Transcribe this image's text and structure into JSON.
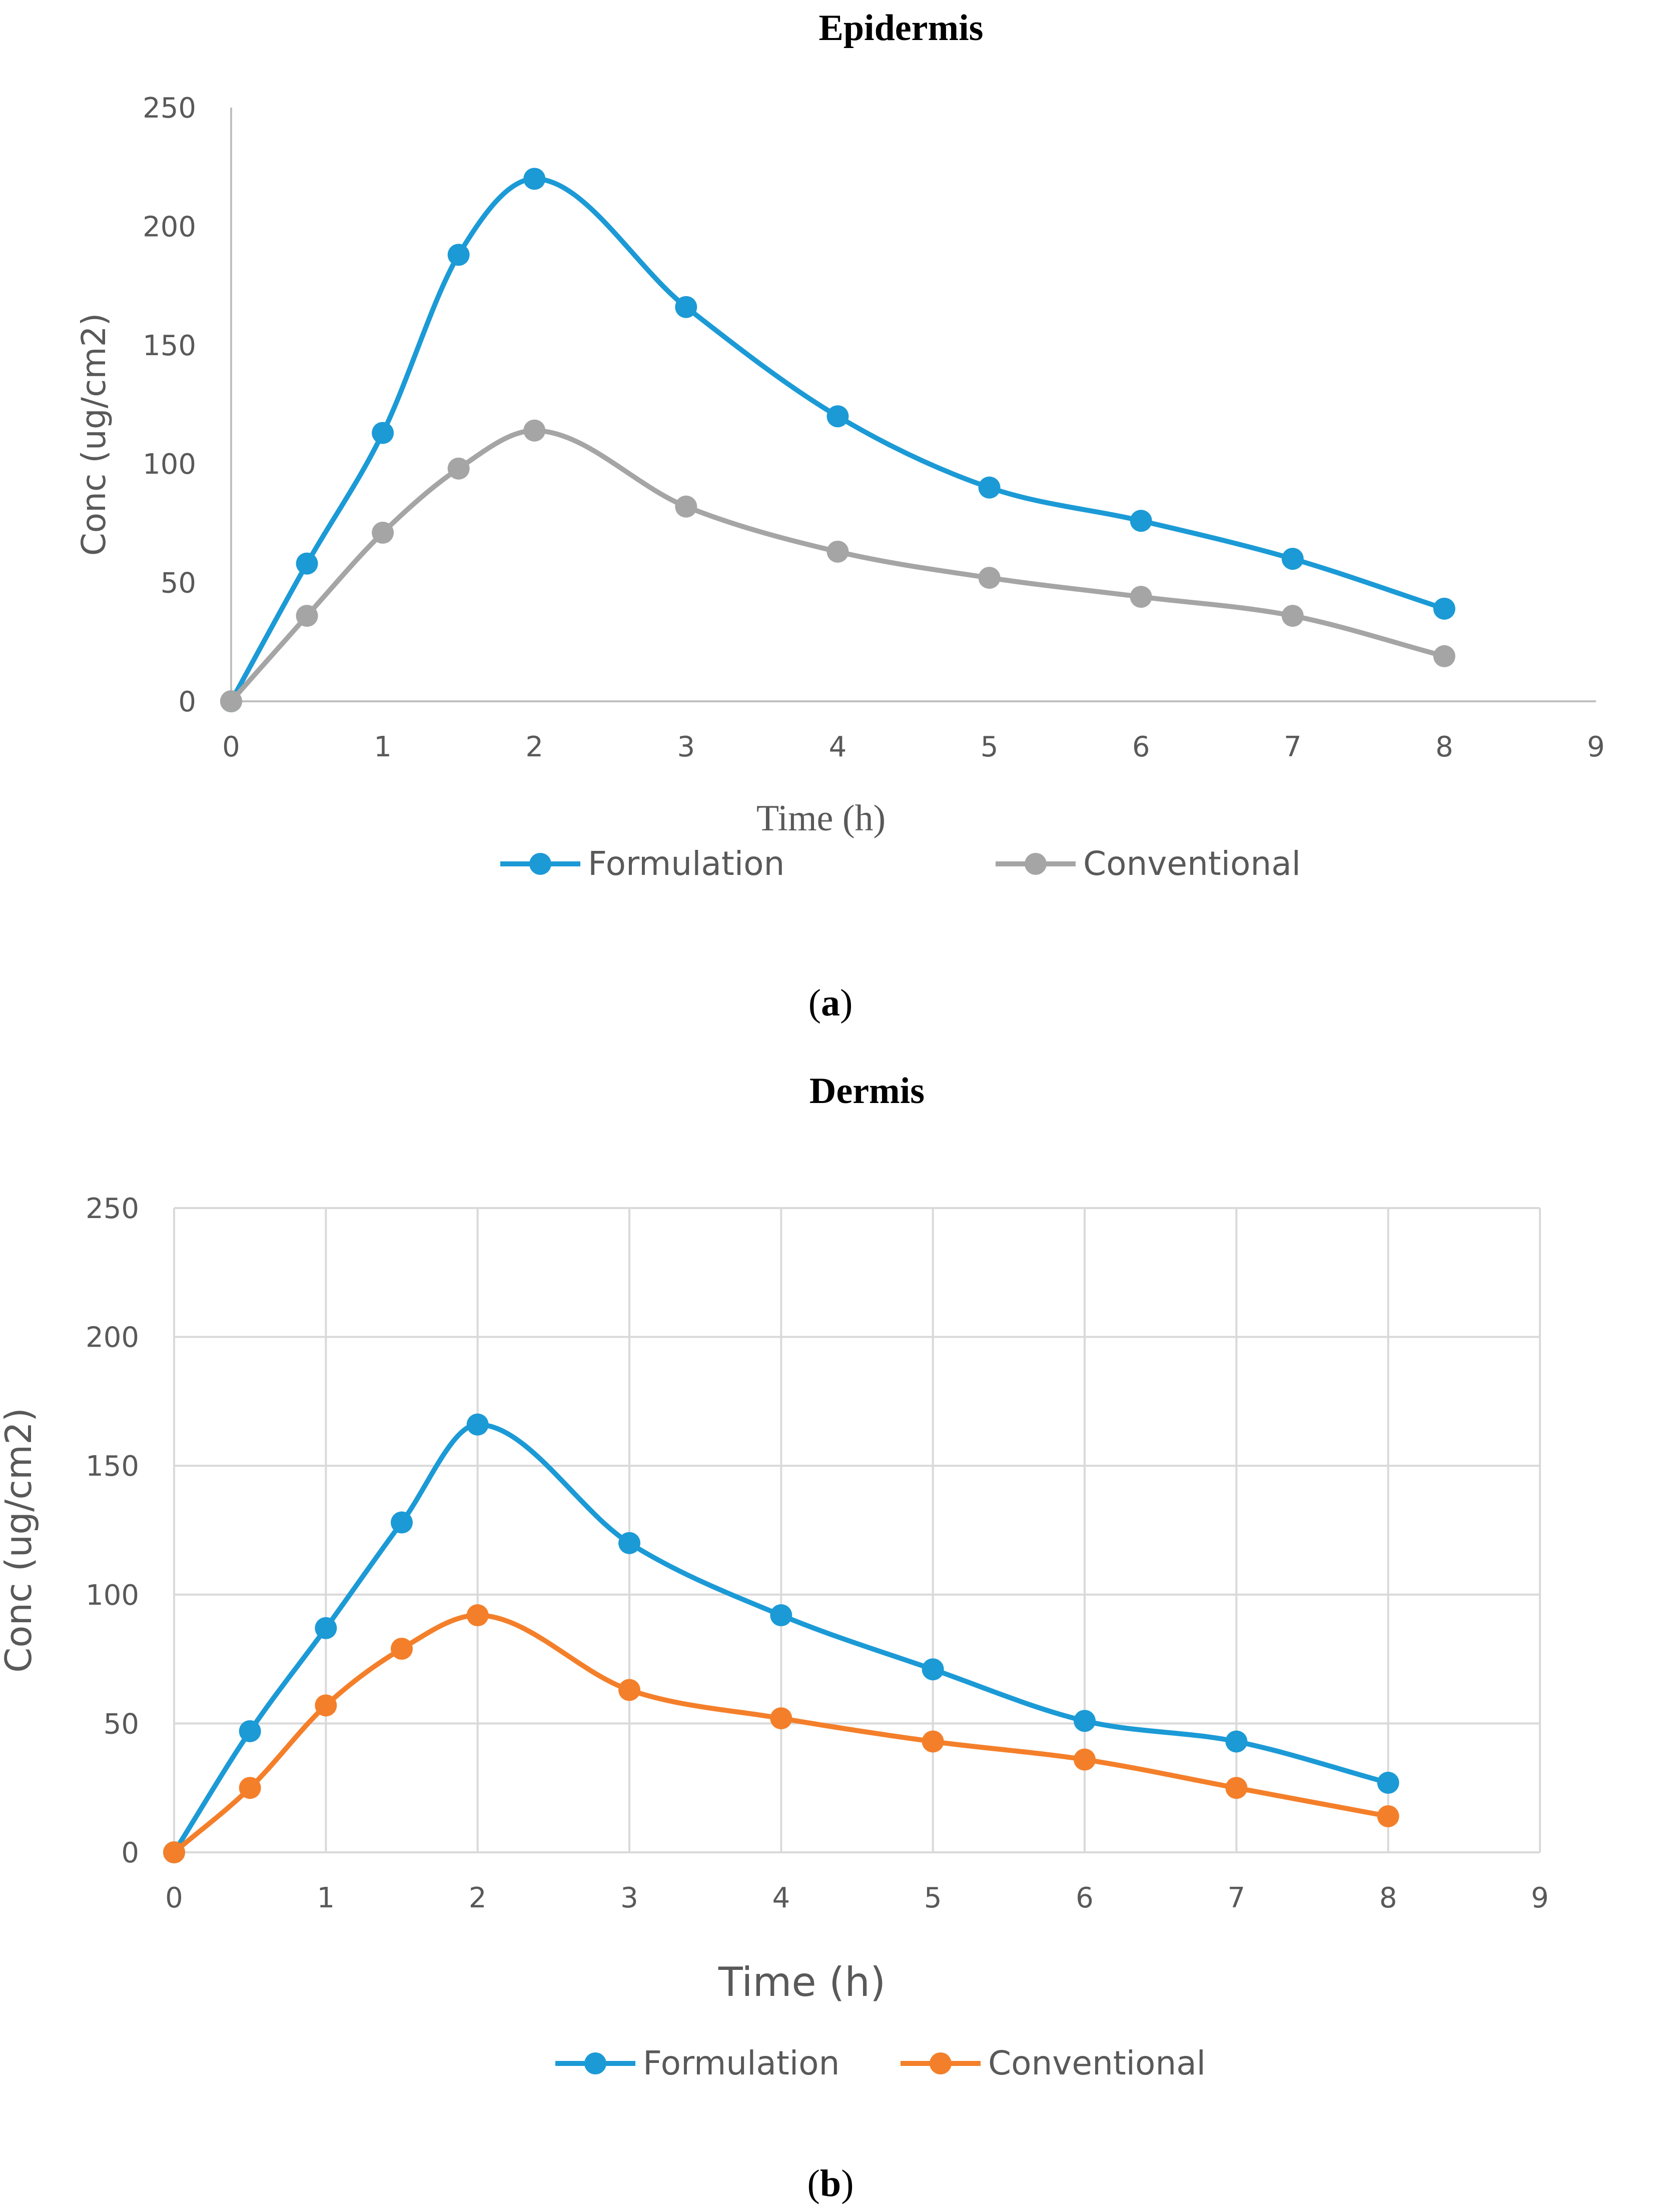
{
  "colors": {
    "formulation": "#1b9ad6",
    "conventional_a": "#a5a5a5",
    "conventional_b": "#f47f2a",
    "axis": "#bfbfbf",
    "grid": "#d9d9d9",
    "text": "#595959",
    "title": "#000000"
  },
  "chart_data": [
    {
      "type": "line",
      "panel_label": "(a)",
      "title": "Epidermis",
      "xlabel": "Time (h)",
      "ylabel": "Conc (ug/cm2)",
      "xlim": [
        0,
        9
      ],
      "ylim": [
        0,
        250
      ],
      "xticks": [
        "0",
        "1",
        "2",
        "3",
        "4",
        "5",
        "6",
        "7",
        "8",
        "9"
      ],
      "yticks": [
        "0",
        "50",
        "100",
        "150",
        "200",
        "250"
      ],
      "grid": false,
      "legend_position": "bottom",
      "x": [
        0,
        0.5,
        1,
        1.5,
        2,
        3,
        4,
        5,
        6,
        7,
        8
      ],
      "series": [
        {
          "name": "Formulation",
          "color_key": "formulation",
          "values": [
            0,
            58,
            113,
            188,
            220,
            166,
            120,
            90,
            76,
            60,
            39
          ]
        },
        {
          "name": "Conventional",
          "color_key": "conventional_a",
          "values": [
            0,
            36,
            71,
            98,
            114,
            82,
            63,
            52,
            44,
            36,
            19
          ]
        }
      ]
    },
    {
      "type": "line",
      "panel_label": "(b)",
      "title": "Dermis",
      "xlabel": "Time (h)",
      "ylabel": "Conc (ug/cm2)",
      "xlim": [
        0,
        9
      ],
      "ylim": [
        0,
        250
      ],
      "xticks": [
        "0",
        "1",
        "2",
        "3",
        "4",
        "5",
        "6",
        "7",
        "8",
        "9"
      ],
      "yticks": [
        "0",
        "50",
        "100",
        "150",
        "200",
        "250"
      ],
      "grid": true,
      "legend_position": "bottom",
      "x": [
        0,
        0.5,
        1,
        1.5,
        2,
        3,
        4,
        5,
        6,
        7,
        8
      ],
      "series": [
        {
          "name": "Formulation",
          "color_key": "formulation",
          "values": [
            0,
            47,
            87,
            128,
            166,
            120,
            92,
            71,
            51,
            43,
            27
          ]
        },
        {
          "name": "Conventional",
          "color_key": "conventional_b",
          "values": [
            0,
            25,
            57,
            79,
            92,
            63,
            52,
            43,
            36,
            25,
            14
          ]
        }
      ]
    }
  ]
}
